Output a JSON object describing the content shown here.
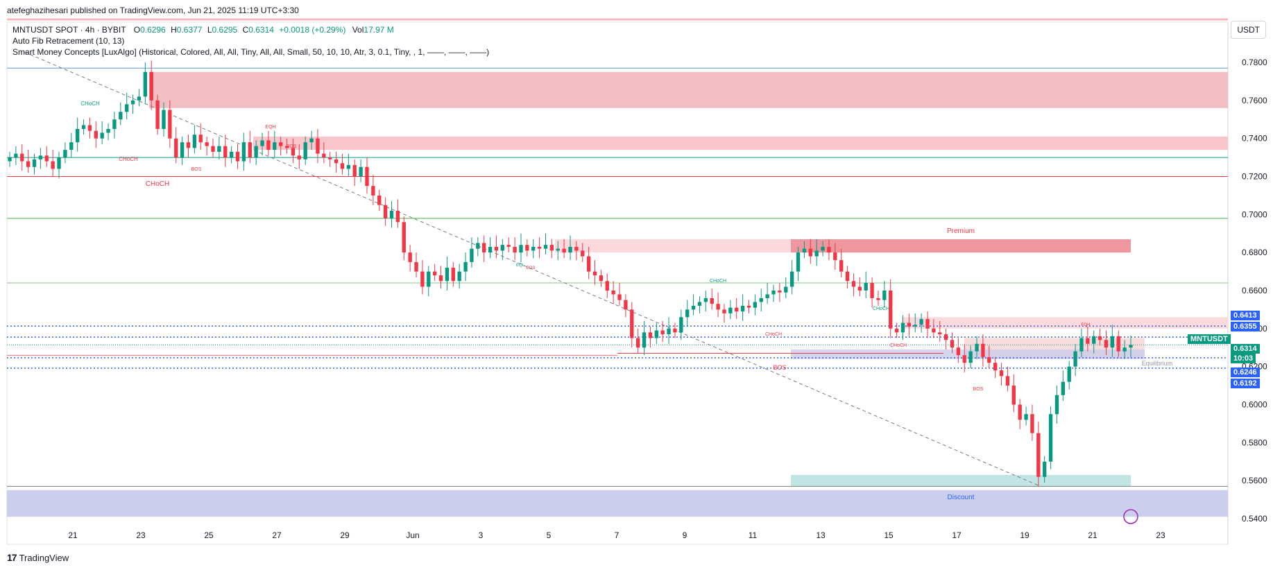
{
  "header": {
    "publisher": "atefeghazihesari published on TradingView.com, Jun 21, 2025 11:19 UTC+3:30",
    "symbol": "MNTUSDT SPOT · 4h · BYBIT",
    "o_label": "O",
    "o_value": "0.6296",
    "h_label": "H",
    "h_value": "0.6377",
    "l_label": "L",
    "l_value": "0.6295",
    "c_label": "C",
    "c_value": "0.6314",
    "change": "+0.0018 (+0.29%)",
    "vol_label": "Vol",
    "vol_value": "17.97 M",
    "indicator1": "Auto Fib Retracement (10, 13)",
    "indicator2": "Smart Money Concepts [LuxAlgo] (Historical, Colored, All, All, Tiny, All, All, Small, 50, 10, 10, Atr, 3, 0.1, Tiny, , 1, ——, ——, ——)"
  },
  "currency_button": "USDT",
  "footer": {
    "brand": "TradingView",
    "logo": "17"
  },
  "colors": {
    "up": "#089981",
    "down": "#f23645",
    "fib_blue": "#2962ff",
    "premium": "#f7b7bd",
    "discount": "#b2dfdb",
    "blue_zone": "#c5cae9"
  },
  "price_tags": [
    {
      "value": "0.6413",
      "bg": "#2962ff"
    },
    {
      "value": "0.6355",
      "bg": "#2962ff"
    },
    {
      "value": "MNTUSDT",
      "bg": "#089981"
    },
    {
      "value": "0.6314",
      "bg": "#089981"
    },
    {
      "value": "10:03",
      "bg": "#089981"
    },
    {
      "value": "0.6246",
      "bg": "#2962ff"
    },
    {
      "value": "0.6192",
      "bg": "#2962ff"
    }
  ],
  "chart_data": {
    "type": "candlestick",
    "symbol": "MNTUSDT",
    "timeframe": "4h",
    "ylim": [
      0.535,
      0.785
    ],
    "y_ticks": [
      "0.7800",
      "0.7600",
      "0.7400",
      "0.7200",
      "0.7000",
      "0.6800",
      "0.6600",
      "0.6400",
      "0.6200",
      "0.6000",
      "0.5800",
      "0.5600",
      "0.5400"
    ],
    "x_ticks": [
      "21",
      "23",
      "25",
      "27",
      "29",
      "Jun",
      "3",
      "5",
      "7",
      "9",
      "11",
      "13",
      "15",
      "17",
      "19",
      "21",
      "23"
    ],
    "annotations": {
      "choch": "CHoCH",
      "bos": "BOS",
      "eqh": "EQH",
      "eql": "EQL",
      "premium": "Premium",
      "discount": "Discount",
      "equilibrium": "Equilibrium"
    },
    "fib_levels": [
      0.777,
      0.73,
      0.72,
      0.698,
      0.664,
      0.6413,
      0.6355,
      0.6246,
      0.6192,
      0.557
    ],
    "last_close": 0.6314,
    "candles_close": [
      0.73,
      0.732,
      0.728,
      0.725,
      0.729,
      0.731,
      0.728,
      0.724,
      0.73,
      0.734,
      0.738,
      0.745,
      0.747,
      0.744,
      0.74,
      0.743,
      0.745,
      0.75,
      0.754,
      0.758,
      0.76,
      0.762,
      0.775,
      0.76,
      0.745,
      0.755,
      0.74,
      0.73,
      0.738,
      0.735,
      0.742,
      0.738,
      0.736,
      0.733,
      0.736,
      0.73,
      0.733,
      0.728,
      0.738,
      0.73,
      0.736,
      0.739,
      0.734,
      0.738,
      0.736,
      0.735,
      0.731,
      0.729,
      0.738,
      0.74,
      0.732,
      0.73,
      0.729,
      0.727,
      0.724,
      0.726,
      0.72,
      0.725,
      0.715,
      0.71,
      0.705,
      0.698,
      0.702,
      0.696,
      0.68,
      0.675,
      0.67,
      0.662,
      0.67,
      0.668,
      0.665,
      0.672,
      0.665,
      0.67,
      0.675,
      0.682,
      0.685,
      0.68,
      0.683,
      0.681,
      0.684,
      0.683,
      0.68,
      0.684,
      0.681,
      0.683,
      0.682,
      0.684,
      0.681,
      0.682,
      0.68,
      0.683,
      0.681,
      0.678,
      0.67,
      0.668,
      0.665,
      0.66,
      0.658,
      0.655,
      0.65,
      0.635,
      0.63,
      0.638,
      0.635,
      0.639,
      0.637,
      0.64,
      0.638,
      0.646,
      0.65,
      0.652,
      0.654,
      0.656,
      0.653,
      0.65,
      0.648,
      0.651,
      0.649,
      0.652,
      0.651,
      0.654,
      0.656,
      0.658,
      0.66,
      0.659,
      0.662,
      0.67,
      0.68,
      0.682,
      0.678,
      0.681,
      0.683,
      0.68,
      0.676,
      0.67,
      0.665,
      0.662,
      0.66,
      0.664,
      0.656,
      0.655,
      0.66,
      0.64,
      0.638,
      0.643,
      0.641,
      0.642,
      0.645,
      0.64,
      0.638,
      0.637,
      0.634,
      0.63,
      0.626,
      0.622,
      0.628,
      0.632,
      0.625,
      0.622,
      0.618,
      0.615,
      0.61,
      0.6,
      0.592,
      0.595,
      0.585,
      0.562,
      0.57,
      0.595,
      0.605,
      0.612,
      0.62,
      0.628,
      0.635,
      0.632,
      0.636,
      0.634,
      0.63,
      0.636,
      0.628,
      0.63,
      0.6314
    ]
  }
}
